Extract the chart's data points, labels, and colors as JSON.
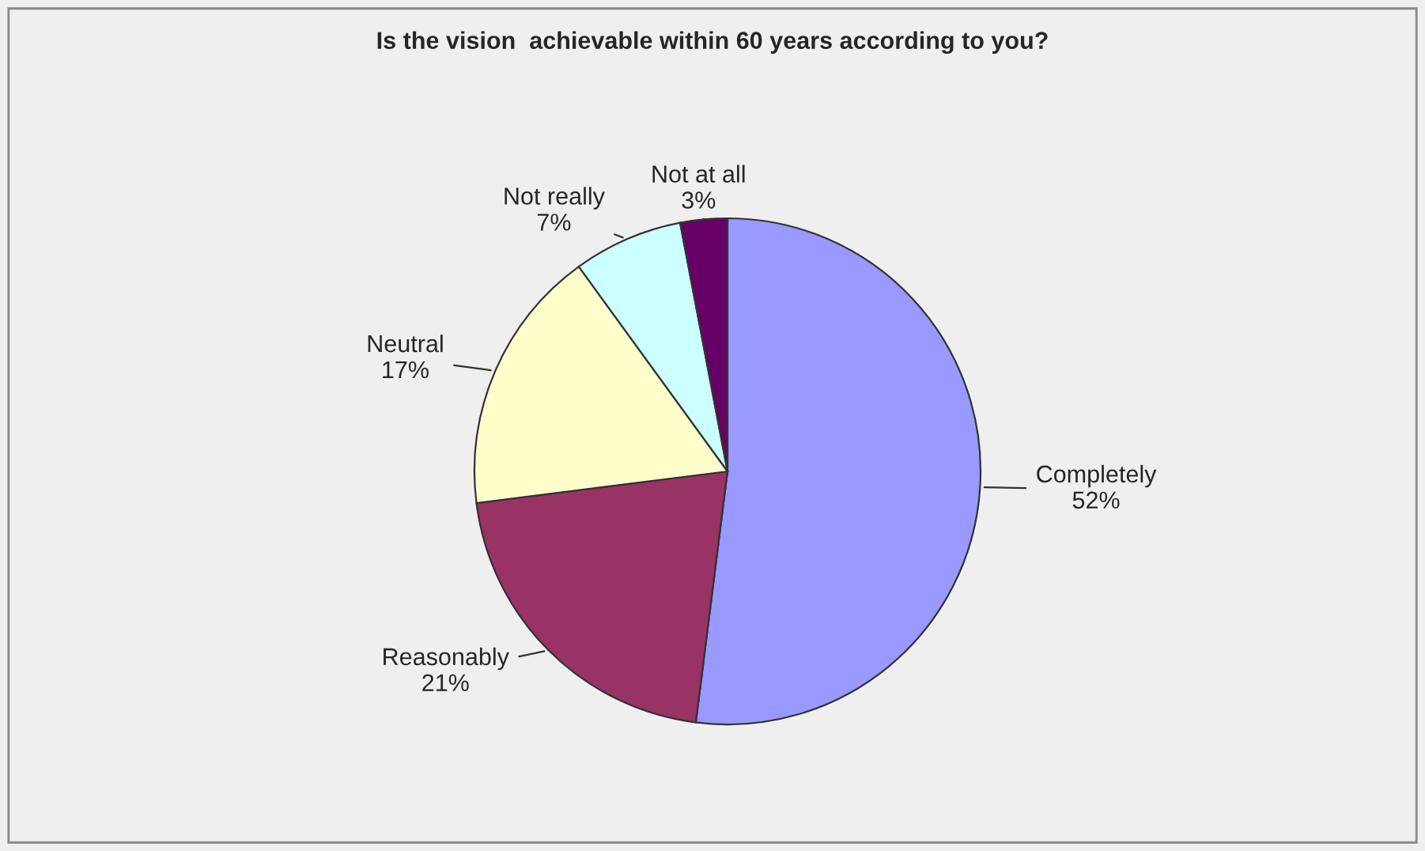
{
  "chart_data": {
    "type": "pie",
    "title": "Is the vision  achievable within 60 years according to you?",
    "categories": [
      "Completely",
      "Reasonably",
      "Neutral",
      "Not really",
      "Not at all"
    ],
    "values": [
      52,
      21,
      17,
      7,
      3
    ],
    "value_labels": [
      "52%",
      "21%",
      "17%",
      "7%",
      "3%"
    ],
    "colors": [
      "#9999ff",
      "#993366",
      "#ffffcc",
      "#ccffff",
      "#660066"
    ],
    "legend": false
  }
}
